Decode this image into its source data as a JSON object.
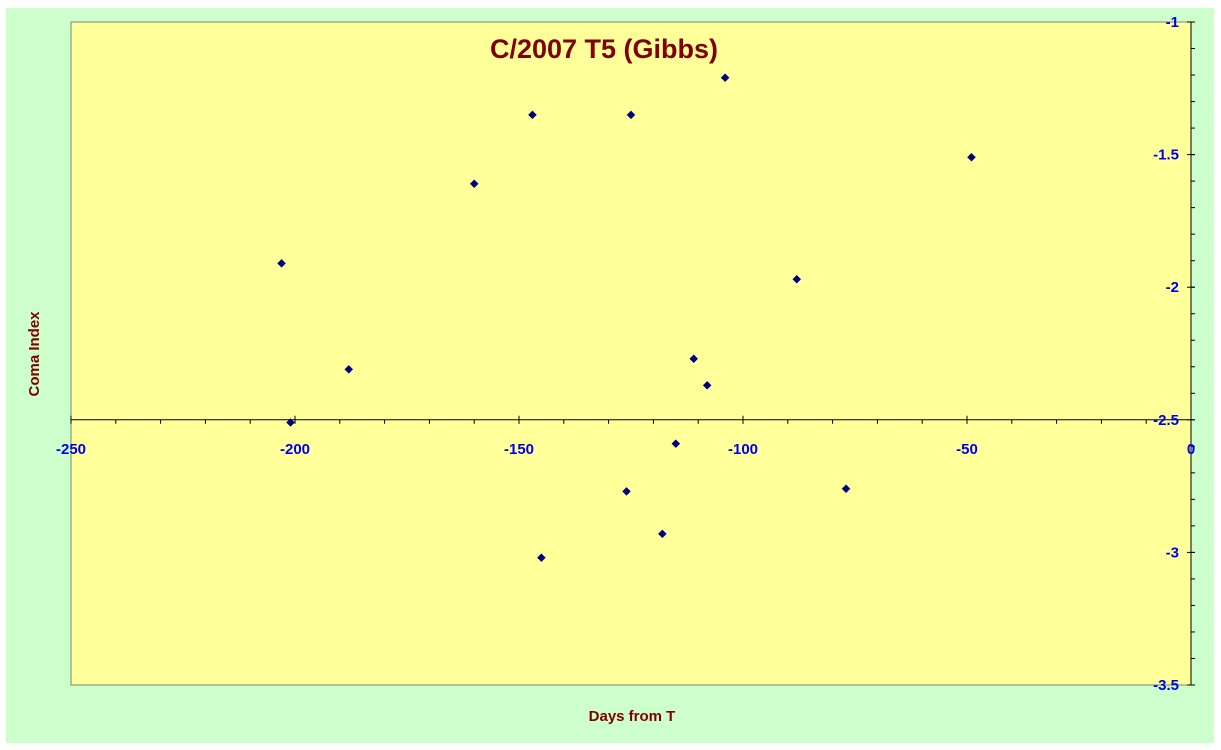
{
  "chart_data": {
    "type": "scatter",
    "title": "C/2007 T5 (Gibbs)",
    "xlabel": "Days from T",
    "ylabel": "Coma Index",
    "xlim": [
      -250,
      0
    ],
    "ylim": [
      -3.5,
      -1
    ],
    "x_ticks": [
      -250,
      -200,
      -150,
      -100,
      -50,
      0
    ],
    "y_ticks": [
      -1,
      -1.5,
      -2,
      -2.5,
      -3,
      -3.5
    ],
    "x_minor_step": 10,
    "y_minor_step": 0.1,
    "grid": false,
    "legend": "none",
    "colors": {
      "background": "#ccffcc",
      "plot_area": "#ffff99",
      "marker": "#000080",
      "tick_labels": "#0000ee",
      "titles": "#800000"
    },
    "series": [
      {
        "points": [
          {
            "x": -203,
            "y": -1.91
          },
          {
            "x": -201,
            "y": -2.51
          },
          {
            "x": -188,
            "y": -2.31
          },
          {
            "x": -160,
            "y": -1.61
          },
          {
            "x": -147,
            "y": -1.35
          },
          {
            "x": -145,
            "y": -3.02
          },
          {
            "x": -126,
            "y": -2.77
          },
          {
            "x": -125,
            "y": -1.35
          },
          {
            "x": -118,
            "y": -2.93
          },
          {
            "x": -115,
            "y": -2.59
          },
          {
            "x": -111,
            "y": -2.27
          },
          {
            "x": -108,
            "y": -2.37
          },
          {
            "x": -104,
            "y": -1.21
          },
          {
            "x": -88,
            "y": -1.97
          },
          {
            "x": -77,
            "y": -2.76
          },
          {
            "x": -49,
            "y": -1.51
          }
        ]
      }
    ]
  }
}
